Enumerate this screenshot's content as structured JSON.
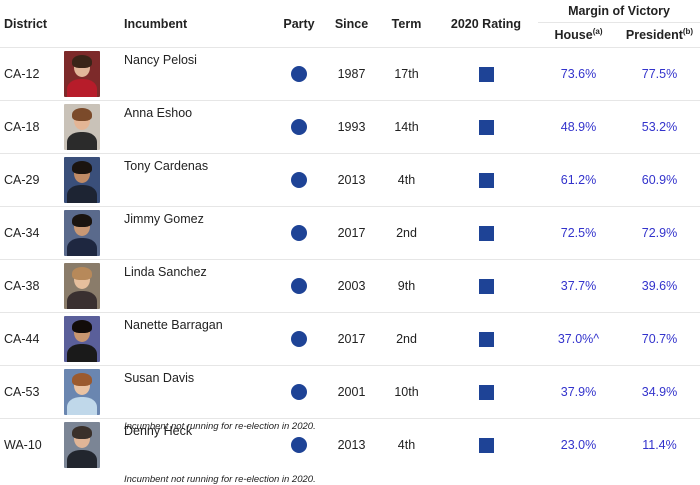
{
  "headers": {
    "district": "District",
    "incumbent": "Incumbent",
    "party": "Party",
    "since": "Since",
    "term": "Term",
    "rating": "2020 Rating",
    "margin": "Margin of Victory",
    "house": "House",
    "house_sup": "(a)",
    "president": "President",
    "president_sup": "(b)"
  },
  "rows": [
    {
      "district": "CA-12",
      "name": "Nancy Pelosi",
      "note": "",
      "since": "1987",
      "term": "17th",
      "house": "73.6%",
      "president": "77.5%",
      "photo": {
        "bg": "#7d2a2a",
        "hair": "#3a2418",
        "skin": "#e2b69a",
        "body": "#b71c2a"
      }
    },
    {
      "district": "CA-18",
      "name": "Anna Eshoo",
      "note": "",
      "since": "1993",
      "term": "14th",
      "house": "48.9%",
      "president": "53.2%",
      "photo": {
        "bg": "#c9c2b8",
        "hair": "#7b4a2a",
        "skin": "#e4b595",
        "body": "#2b2b2b"
      }
    },
    {
      "district": "CA-29",
      "name": "Tony Cardenas",
      "note": "",
      "since": "2013",
      "term": "4th",
      "house": "61.2%",
      "president": "60.9%",
      "photo": {
        "bg": "#3a4f7a",
        "hair": "#1b1410",
        "skin": "#c08b66",
        "body": "#1d2433"
      }
    },
    {
      "district": "CA-34",
      "name": "Jimmy Gomez",
      "note": "",
      "since": "2017",
      "term": "2nd",
      "house": "72.5%",
      "president": "72.9%",
      "photo": {
        "bg": "#5a6a8c",
        "hair": "#1a1410",
        "skin": "#c99874",
        "body": "#1e2740"
      }
    },
    {
      "district": "CA-38",
      "name": "Linda Sanchez",
      "note": "",
      "since": "2003",
      "term": "9th",
      "house": "37.7%",
      "president": "39.6%",
      "photo": {
        "bg": "#8a7c6a",
        "hair": "#b7895a",
        "skin": "#e6bf9d",
        "body": "#3a3030"
      }
    },
    {
      "district": "CA-44",
      "name": "Nanette Barragan",
      "note": "",
      "since": "2017",
      "term": "2nd",
      "house": "37.0%^",
      "president": "70.7%",
      "photo": {
        "bg": "#5a5f9a",
        "hair": "#120c0a",
        "skin": "#c89670",
        "body": "#1a1a1a"
      }
    },
    {
      "district": "CA-53",
      "name": "Susan Davis",
      "note": "Incumbent not running for re-election in 2020.",
      "since": "2001",
      "term": "10th",
      "house": "37.9%",
      "president": "34.9%",
      "photo": {
        "bg": "#6a86b0",
        "hair": "#9b5a2e",
        "skin": "#eac3a3",
        "body": "#c0d8ea"
      }
    },
    {
      "district": "WA-10",
      "name": "Denny Heck",
      "note": "Incumbent not running for re-election in 2020.",
      "since": "2013",
      "term": "4th",
      "house": "23.0%",
      "president": "11.4%",
      "photo": {
        "bg": "#7b8595",
        "hair": "#3a302a",
        "skin": "#e0b597",
        "body": "#22262e"
      }
    }
  ]
}
